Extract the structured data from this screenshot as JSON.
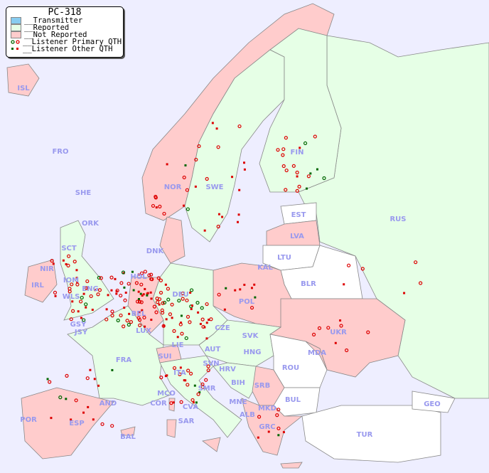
{
  "legend": {
    "title": "PC-318",
    "items": [
      {
        "label": "__Transmitter",
        "color": "#88ccf0"
      },
      {
        "label": "__Reported",
        "color": "#e6ffe6"
      },
      {
        "label": "__Not Reported",
        "color": "#ffcccc"
      },
      {
        "label": "__Listener Primary QTH",
        "colors": [
          "#006600",
          "#dd0000"
        ]
      },
      {
        "label": "__Listener Other QTH",
        "colors": [
          "#006600",
          "#dd0000"
        ]
      }
    ]
  },
  "colors": {
    "sea": "#eeeeff",
    "reported": "#e6ffe6",
    "not_reported": "#ffcccc",
    "no_data": "#ffffff",
    "border": "#888888"
  },
  "countries": [
    "ISL",
    "FRO",
    "SHE",
    "ORK",
    "SCT",
    "NIR",
    "IRL",
    "IOM",
    "ENG",
    "WLS",
    "GSY",
    "JSY",
    "HOL",
    "BEL",
    "LUX",
    "FRA",
    "DEU",
    "DNK",
    "NOR",
    "SWE",
    "FIN",
    "EST",
    "LVA",
    "LTU",
    "KAL",
    "BLR",
    "POL",
    "UKR",
    "RUS",
    "CZE",
    "SVK",
    "AUT",
    "HNG",
    "LIE",
    "SUI",
    "ITA",
    "SVN",
    "HRV",
    "BIH",
    "SRB",
    "ROU",
    "MDA",
    "BUL",
    "MKD",
    "ALB",
    "MNE",
    "GRC",
    "TUR",
    "GEO",
    "MCO",
    "COR",
    "CVA",
    "SMR",
    "SAR",
    "AND",
    "ESP",
    "POR",
    "BAL"
  ]
}
